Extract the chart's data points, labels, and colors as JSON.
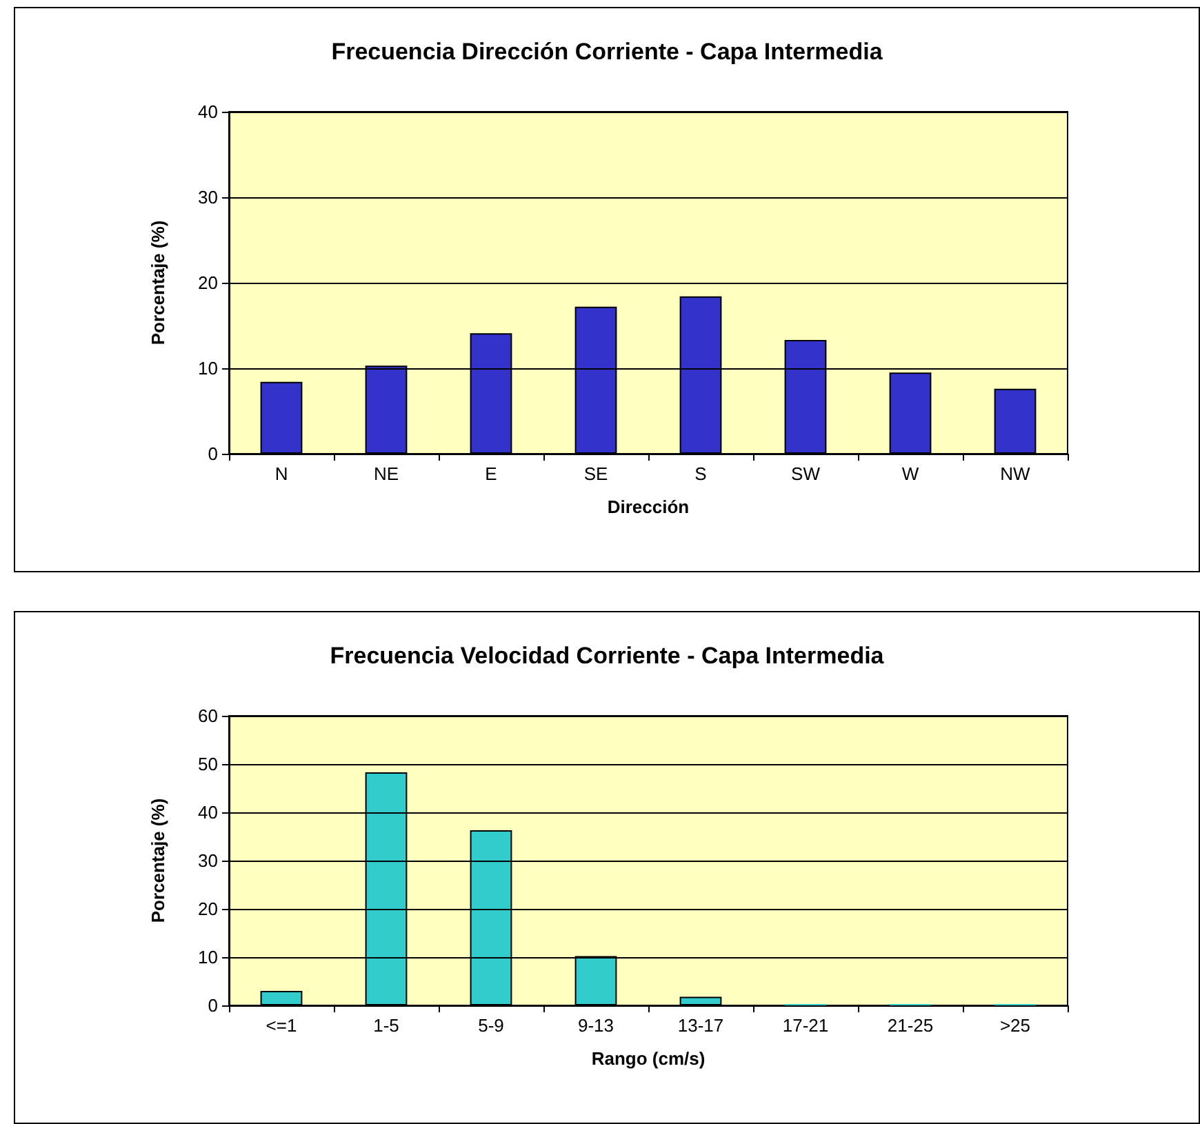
{
  "chart_data": [
    {
      "type": "bar",
      "title": "Frecuencia Dirección Corriente - Capa Intermedia",
      "xlabel": "Dirección",
      "ylabel": "Porcentaje (%)",
      "categories": [
        "N",
        "NE",
        "E",
        "SE",
        "S",
        "SW",
        "W",
        "NW"
      ],
      "values": [
        8.4,
        10.3,
        14.1,
        17.2,
        18.4,
        13.3,
        9.5,
        7.6
      ],
      "color": "#3333cc",
      "ylim": [
        0,
        40
      ],
      "yticks": [
        0,
        10,
        20,
        30,
        40
      ],
      "grid": "y"
    },
    {
      "type": "bar",
      "title": "Frecuencia Velocidad Corriente - Capa Intermedia",
      "xlabel": "Rango (cm/s)",
      "ylabel": "Porcentaje (%)",
      "categories": [
        "<=1",
        "1-5",
        "5-9",
        "9-13",
        "13-17",
        "17-21",
        "21-25",
        ">25"
      ],
      "values": [
        3,
        48.3,
        36.3,
        10.2,
        1.8,
        0,
        0,
        0
      ],
      "color": "#33cccc",
      "ylim": [
        0,
        60
      ],
      "yticks": [
        0,
        10,
        20,
        30,
        40,
        50,
        60
      ],
      "grid": "y"
    }
  ]
}
